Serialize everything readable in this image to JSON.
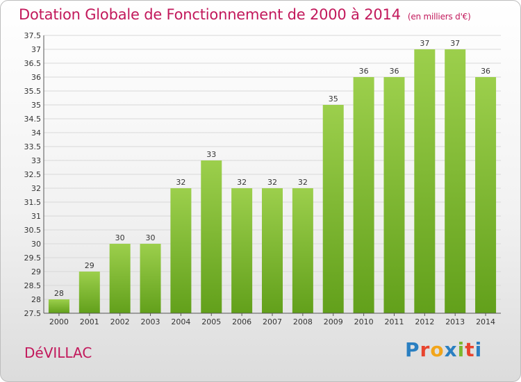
{
  "header": {
    "title": "Dotation Globale de Fonctionnement de 2000 à 2014",
    "subtitle": "(en milliers d'€)"
  },
  "footer": {
    "place": "DéVILLAC",
    "brand": "Proxiti",
    "brand_colors": [
      "#2a7fc1",
      "#e8442e",
      "#f2a51a",
      "#2a7fc1",
      "#7cb82f",
      "#e8442e",
      "#2a7fc1"
    ]
  },
  "chart_data": {
    "type": "bar",
    "categories": [
      "2000",
      "2001",
      "2002",
      "2003",
      "2004",
      "2005",
      "2006",
      "2007",
      "2008",
      "2009",
      "2010",
      "2011",
      "2012",
      "2013",
      "2014"
    ],
    "values": [
      28,
      29,
      30,
      30,
      32,
      33,
      32,
      32,
      32,
      35,
      36,
      36,
      37,
      37,
      36
    ],
    "data_labels": [
      "28",
      "29",
      "30",
      "30",
      "32",
      "33",
      "32",
      "32",
      "32",
      "35",
      "36",
      "36",
      "37",
      "37",
      "36"
    ],
    "y_ticks": [
      "27.5",
      "28",
      "28.5",
      "29",
      "29.5",
      "30",
      "30.5",
      "31",
      "31.5",
      "32",
      "32.5",
      "33",
      "33.5",
      "34",
      "34.5",
      "35",
      "35.5",
      "36",
      "36.5",
      "37",
      "37.5"
    ],
    "ylim": [
      27.5,
      37.5
    ],
    "grid": true,
    "bar_color_top": "#9ccf4c",
    "bar_color_bottom": "#62a01b"
  }
}
